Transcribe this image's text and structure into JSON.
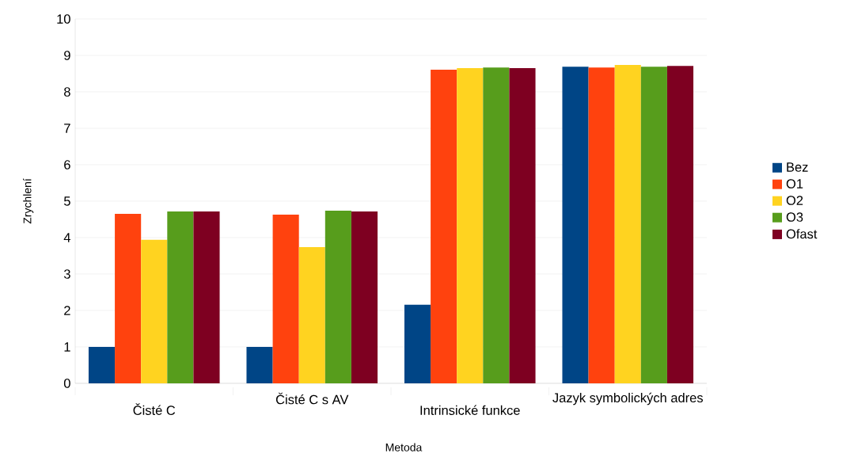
{
  "chart_data": {
    "type": "bar",
    "xlabel": "Metoda",
    "ylabel": "Zrychlení",
    "categories": [
      "Čisté C",
      "Čisté C s AV",
      "Intrinsické funkce",
      "Jazyk symbolických adres"
    ],
    "series": [
      {
        "name": "Bez",
        "color": "#004586",
        "values": [
          1.0,
          1.0,
          2.16,
          8.69
        ]
      },
      {
        "name": "O1",
        "color": "#ff420e",
        "values": [
          4.65,
          4.63,
          8.61,
          8.67
        ]
      },
      {
        "name": "O2",
        "color": "#ffd320",
        "values": [
          3.94,
          3.74,
          8.65,
          8.74
        ]
      },
      {
        "name": "O3",
        "color": "#579d1c",
        "values": [
          4.72,
          4.74,
          8.67,
          8.69
        ]
      },
      {
        "name": "Ofast",
        "color": "#7e0021",
        "values": [
          4.72,
          4.72,
          8.65,
          8.71
        ]
      }
    ],
    "ylim": [
      0,
      10
    ],
    "yticks": [
      0,
      1,
      2,
      3,
      4,
      5,
      6,
      7,
      8,
      9,
      10
    ],
    "grid": "y",
    "legend": "right"
  }
}
